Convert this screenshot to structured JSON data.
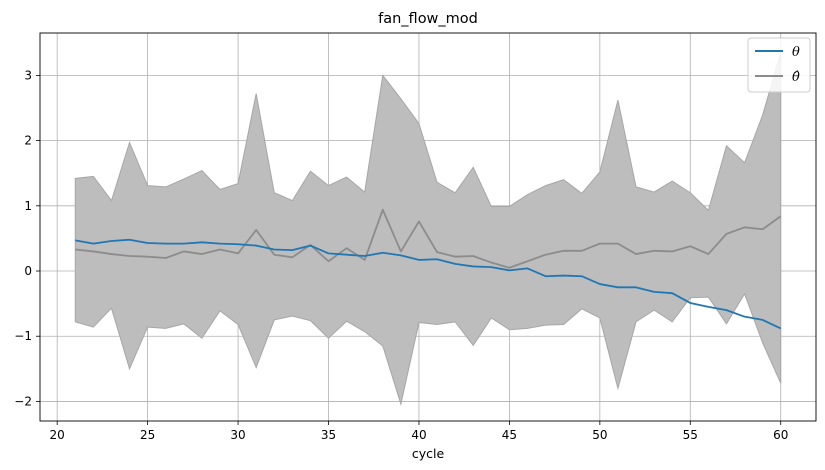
{
  "chart_data": {
    "type": "line",
    "title": "fan_flow_mod",
    "xlabel": "cycle",
    "ylabel": "",
    "xlim": [
      19.05,
      61.95
    ],
    "ylim": [
      -2.3,
      3.65
    ],
    "xticks": [
      20,
      25,
      30,
      35,
      40,
      45,
      50,
      55,
      60
    ],
    "yticks": [
      -2,
      -1,
      0,
      1,
      2,
      3
    ],
    "grid": true,
    "legend_position": "top-right",
    "x": [
      21,
      22,
      23,
      24,
      25,
      26,
      27,
      28,
      29,
      30,
      31,
      32,
      33,
      34,
      35,
      36,
      37,
      38,
      39,
      40,
      41,
      42,
      43,
      44,
      45,
      46,
      47,
      48,
      49,
      50,
      51,
      52,
      53,
      54,
      55,
      56,
      57,
      58,
      59,
      60
    ],
    "series": [
      {
        "name": "θ",
        "color": "#1f77b4",
        "values": [
          0.47,
          0.42,
          0.46,
          0.48,
          0.43,
          0.42,
          0.42,
          0.44,
          0.42,
          0.41,
          0.39,
          0.33,
          0.32,
          0.39,
          0.27,
          0.25,
          0.23,
          0.28,
          0.24,
          0.17,
          0.18,
          0.11,
          0.07,
          0.06,
          0.01,
          0.04,
          -0.08,
          -0.07,
          -0.08,
          -0.2,
          -0.25,
          -0.25,
          -0.32,
          -0.34,
          -0.49,
          -0.55,
          -0.6,
          -0.7,
          -0.75,
          -0.88
        ]
      },
      {
        "name": "θ̂",
        "color": "#8c8c8c",
        "values": [
          0.33,
          0.3,
          0.26,
          0.23,
          0.22,
          0.2,
          0.3,
          0.26,
          0.33,
          0.27,
          0.63,
          0.25,
          0.21,
          0.4,
          0.15,
          0.35,
          0.17,
          0.94,
          0.3,
          0.76,
          0.29,
          0.22,
          0.23,
          0.13,
          0.05,
          0.15,
          0.25,
          0.31,
          0.31,
          0.42,
          0.42,
          0.26,
          0.31,
          0.3,
          0.38,
          0.26,
          0.57,
          0.67,
          0.64,
          0.84
        ]
      }
    ],
    "band": {
      "color": "#bdbdbd",
      "edge_color": "#a6a6a6",
      "upper": [
        1.42,
        1.45,
        1.08,
        1.97,
        1.31,
        1.29,
        1.41,
        1.54,
        1.25,
        1.34,
        2.72,
        1.2,
        1.08,
        1.53,
        1.31,
        1.44,
        1.21,
        3.0,
        2.64,
        2.26,
        1.36,
        1.2,
        1.59,
        0.99,
        0.99,
        1.17,
        1.31,
        1.4,
        1.19,
        1.52,
        2.62,
        1.29,
        1.21,
        1.38,
        1.2,
        0.93,
        1.92,
        1.66,
        2.39,
        3.35
      ],
      "lower": [
        -0.78,
        -0.86,
        -0.57,
        -1.5,
        -0.86,
        -0.88,
        -0.81,
        -1.03,
        -0.61,
        -0.82,
        -1.48,
        -0.75,
        -0.69,
        -0.76,
        -1.03,
        -0.77,
        -0.93,
        -1.15,
        -2.04,
        -0.79,
        -0.82,
        -0.78,
        -1.14,
        -0.72,
        -0.9,
        -0.88,
        -0.83,
        -0.82,
        -0.58,
        -0.72,
        -1.8,
        -0.78,
        -0.6,
        -0.78,
        -0.41,
        -0.4,
        -0.81,
        -0.35,
        -1.1,
        -1.72
      ]
    }
  }
}
